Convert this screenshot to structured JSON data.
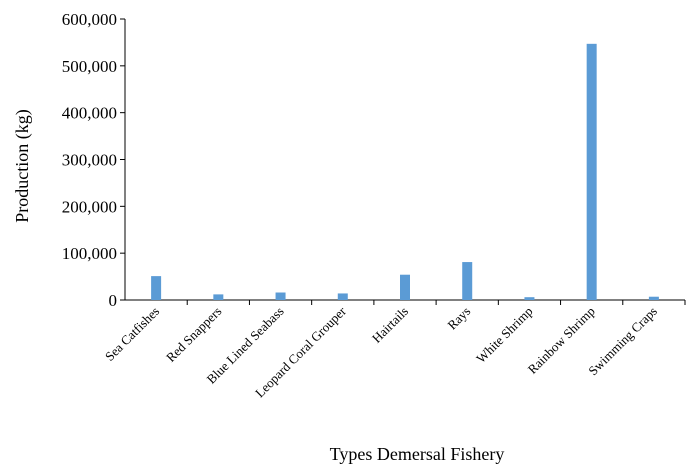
{
  "chart_data": {
    "type": "bar",
    "categories": [
      "Sea Catfishes",
      "Red Snappers",
      "Blue Lined Seabass",
      "Leopard Coral  Grouper",
      "Hairtails",
      "Rays",
      "White Shrimp",
      "Rainbow Shrimp",
      "Swimming Craps"
    ],
    "values": [
      51000,
      12000,
      16000,
      14000,
      54000,
      81000,
      6000,
      547000,
      7000
    ],
    "xlabel": "Types Demersal Fishery",
    "ylabel": "Production (kg)",
    "ylim": [
      0,
      600000
    ],
    "yticks": [
      "0",
      "100,000",
      "200,000",
      "300,000",
      "400,000",
      "500,000",
      "600,000"
    ],
    "grid": false,
    "legend": "none",
    "bar_color": "#5B9BD5"
  }
}
